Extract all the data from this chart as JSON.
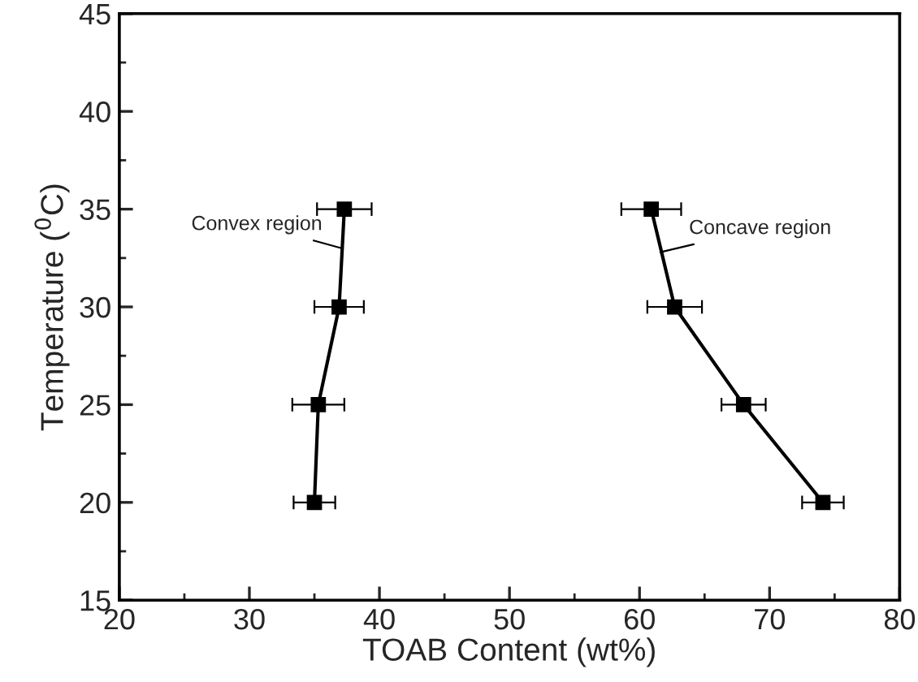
{
  "chart_data": {
    "type": "line",
    "xlabel": "TOAB Content (wt%)",
    "ylabel": "Temperature ($^{0}$C)",
    "xlim": [
      20,
      80
    ],
    "ylim": [
      15,
      45
    ],
    "xticks": [
      20,
      {
        "value": 25,
        "label": null
      },
      30,
      {
        "value": 35,
        "label": null
      },
      40,
      {
        "value": 45,
        "label": null
      },
      50,
      {
        "value": 55,
        "label": null
      },
      60,
      {
        "value": 65,
        "label": null
      },
      70,
      {
        "value": 75,
        "label": null
      },
      80
    ],
    "yticks": [
      15,
      {
        "value": 17.5,
        "label": null
      },
      20,
      {
        "value": 22.5,
        "label": null
      },
      25,
      {
        "value": 27.5,
        "label": null
      },
      30,
      {
        "value": 32.5,
        "label": null
      },
      35,
      {
        "value": 37.5,
        "label": null
      },
      40,
      {
        "value": 42.5,
        "label": null
      },
      45
    ],
    "marker": "square",
    "line_style": "solid",
    "grid": false,
    "legend": false,
    "series": [
      {
        "color": "#000000",
        "x": [
          35.0,
          35.3,
          36.9,
          37.3
        ],
        "values": [
          20,
          25,
          30,
          35
        ],
        "xerrors": [
          1.6,
          2.0,
          1.9,
          2.1
        ]
      },
      {
        "color": "#000000",
        "x": [
          74.1,
          68.0,
          62.7,
          60.9
        ],
        "values": [
          20,
          25,
          30,
          35
        ],
        "xerrors": [
          1.6,
          1.7,
          2.1,
          2.3
        ]
      }
    ],
    "annotations": [
      {
        "text": "Convex region",
        "x": 37.1,
        "y": 33.0
      },
      {
        "text": "Concave region",
        "x": 61.6,
        "y": 32.8
      }
    ]
  }
}
